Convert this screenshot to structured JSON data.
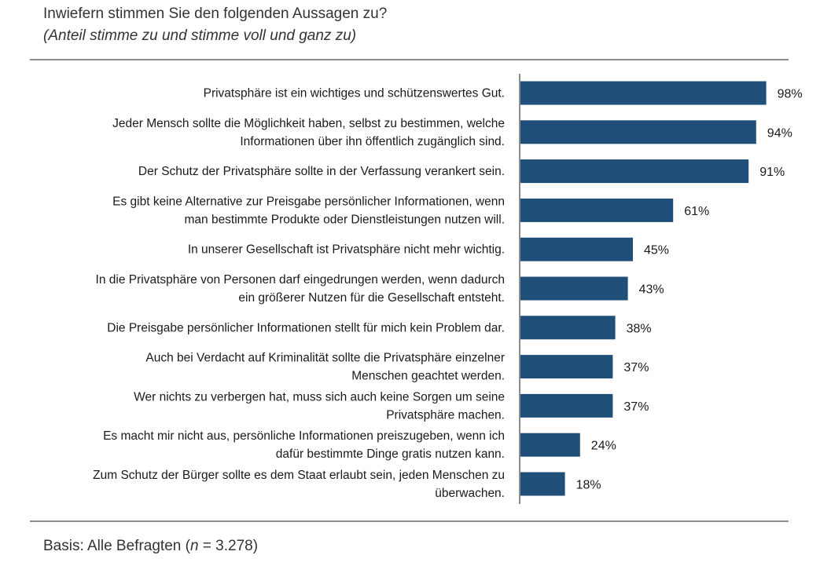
{
  "header": {
    "title": "Inwiefern stimmen Sie den folgenden Aussagen zu?",
    "subtitle": "(Anteil stimme zu und stimme voll und ganz zu)"
  },
  "footer": {
    "basis_prefix": "Basis: Alle Befragten (",
    "basis_n": "n",
    "basis_suffix": " = 3.278)"
  },
  "colors": {
    "bar": "#1f4e79",
    "axis": "#8c8c8c"
  },
  "chart_data": {
    "type": "bar",
    "orientation": "horizontal",
    "title": "Inwiefern stimmen Sie den folgenden Aussagen zu?",
    "subtitle": "(Anteil stimme zu und stimme voll und ganz zu)",
    "xlabel": "",
    "ylabel": "",
    "xlim": [
      0,
      100
    ],
    "unit": "%",
    "grid": false,
    "legend": "none",
    "categories": [
      [
        "Privatsphäre ist ein wichtiges und schützenswertes Gut."
      ],
      [
        "Jeder Mensch sollte die Möglichkeit haben, selbst zu bestimmen, welche",
        "Informationen über ihn öffentlich zugänglich sind."
      ],
      [
        "Der Schutz der Privatsphäre sollte in der Verfassung verankert sein."
      ],
      [
        "Es gibt keine Alternative zur Preisgabe persönlicher Informationen, wenn",
        "man bestimmte Produkte oder Dienstleistungen nutzen will."
      ],
      [
        "In unserer Gesellschaft ist Privatsphäre nicht mehr wichtig."
      ],
      [
        "In die Privatsphäre von Personen darf eingedrungen werden, wenn dadurch",
        "ein größerer Nutzen für die Gesellschaft entsteht."
      ],
      [
        "Die Preisgabe persönlicher Informationen stellt für mich kein Problem dar."
      ],
      [
        "Auch bei Verdacht auf Kriminalität sollte die Privatsphäre einzelner",
        "Menschen geachtet werden."
      ],
      [
        "Wer nichts zu verbergen hat, muss sich auch keine Sorgen um seine",
        "Privatsphäre machen."
      ],
      [
        "Es macht mir nicht aus, persönliche Informationen preiszugeben, wenn ich",
        "dafür bestimmte Dinge gratis nutzen kann."
      ],
      [
        "Zum Schutz der Bürger sollte es dem Staat erlaubt sein, jeden Menschen zu",
        "überwachen."
      ]
    ],
    "values": [
      98,
      94,
      91,
      61,
      45,
      43,
      38,
      37,
      37,
      24,
      18
    ],
    "value_labels": [
      "98%",
      "94%",
      "91%",
      "61%",
      "45%",
      "43%",
      "38%",
      "37%",
      "37%",
      "24%",
      "18%"
    ]
  }
}
